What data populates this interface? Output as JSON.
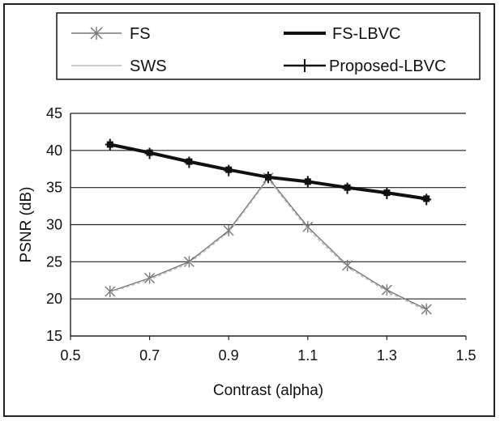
{
  "chart_data": {
    "type": "line",
    "title": "",
    "xlabel": "Contrast (alpha)",
    "ylabel": "PSNR (dB)",
    "xlim": [
      0.5,
      1.5
    ],
    "ylim": [
      15,
      45
    ],
    "xticks": [
      "0.5",
      "0.7",
      "0.9",
      "1.1",
      "1.3",
      "1.5"
    ],
    "yticks": [
      "15",
      "20",
      "25",
      "30",
      "35",
      "40",
      "45"
    ],
    "grid": "horizontal",
    "legend_position": "top",
    "x": [
      0.6,
      0.7,
      0.8,
      0.9,
      1.0,
      1.1,
      1.2,
      1.3,
      1.4
    ],
    "series": [
      {
        "name": "FS",
        "marker": "star",
        "color": "#777777",
        "values": [
          21.0,
          22.8,
          25.0,
          29.2,
          36.3,
          29.7,
          24.5,
          21.2,
          18.6
        ]
      },
      {
        "name": "SWS",
        "marker": "none",
        "color": "#bbbbbb",
        "values": [
          20.9,
          22.6,
          24.8,
          29.0,
          36.1,
          29.4,
          24.3,
          21.0,
          18.4
        ]
      },
      {
        "name": "FS-LBVC",
        "marker": "square",
        "color": "#111111",
        "values": [
          40.8,
          39.7,
          38.5,
          37.4,
          36.4,
          35.8,
          35.0,
          34.3,
          33.5
        ]
      },
      {
        "name": "Proposed-LBVC",
        "marker": "plus",
        "color": "#111111",
        "values": [
          40.8,
          39.6,
          38.4,
          37.3,
          36.4,
          35.8,
          34.9,
          34.2,
          33.4
        ]
      }
    ]
  }
}
